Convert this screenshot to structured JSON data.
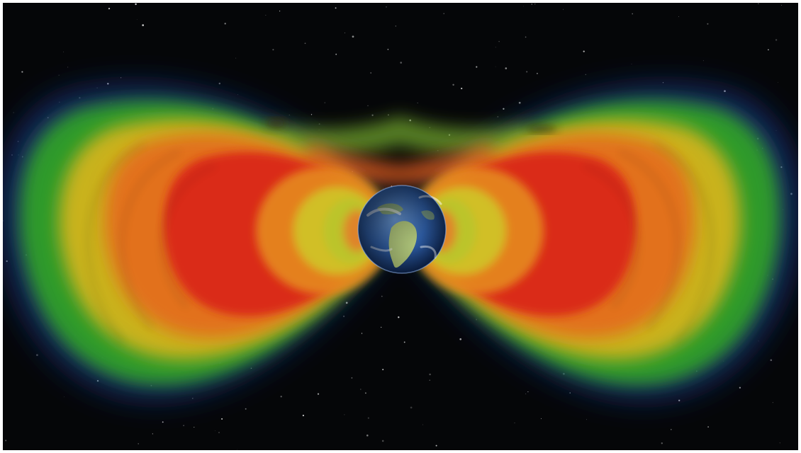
{
  "scene": {
    "subject": "earth-radiation-belts",
    "colors": {
      "space": "#050608",
      "outer_haze": "#1c3a8a",
      "belt_green": "#3fae2e",
      "belt_yellow": "#c9b21f",
      "belt_orange": "#e2711c",
      "belt_red": "#d9261b",
      "earth_ocean": "#2f5fa8",
      "earth_land": "#b9cf7a"
    }
  }
}
